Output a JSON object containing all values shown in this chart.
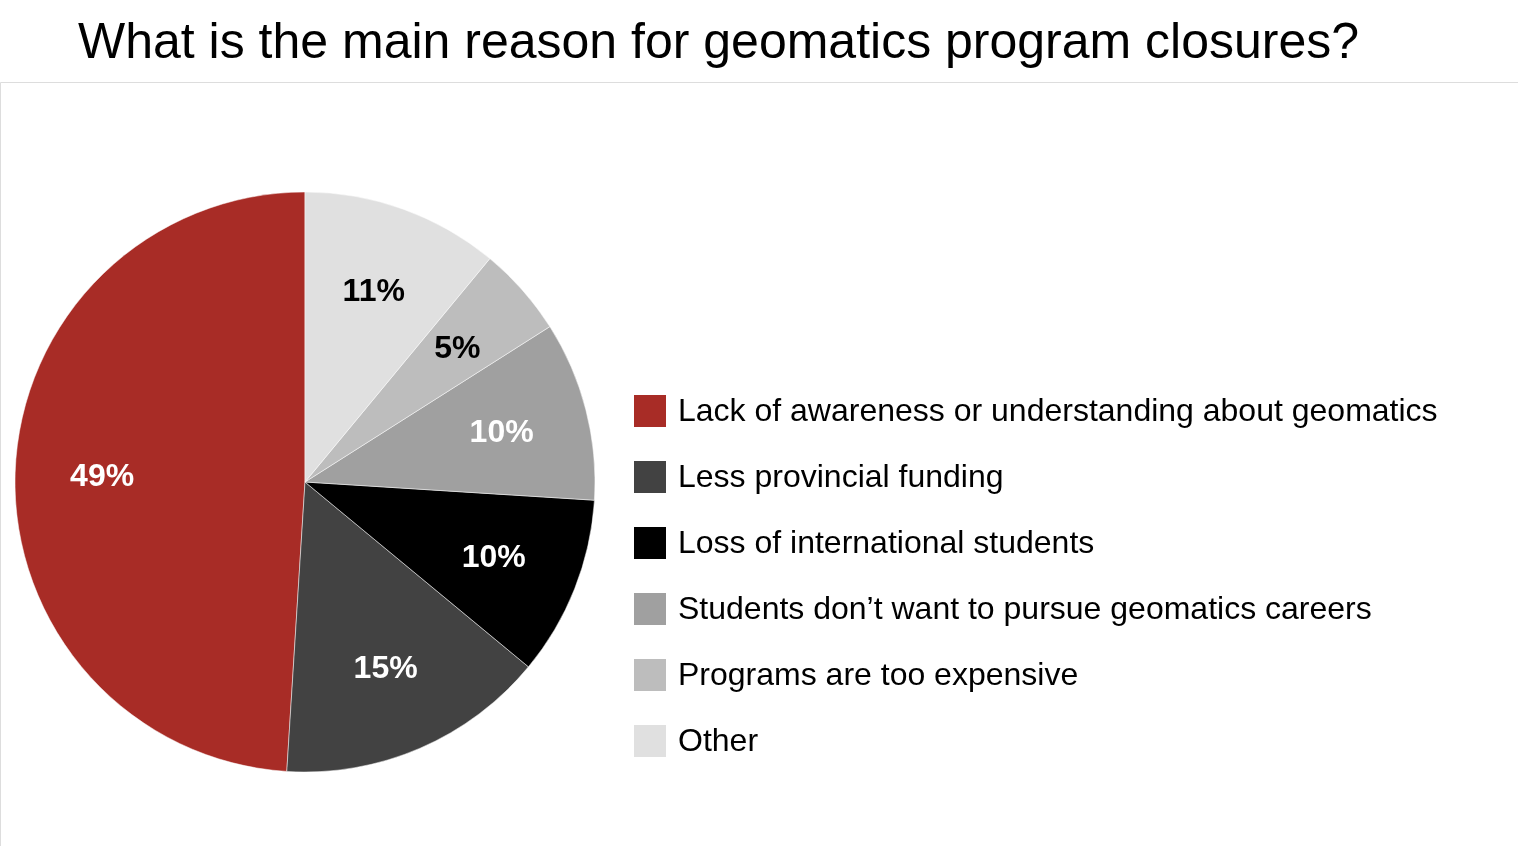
{
  "chart_data": {
    "type": "pie",
    "title": "What is the main reason for geomatics program closures?",
    "categories": [
      "Lack of awareness or understanding about geomatics",
      "Less provincial funding",
      "Loss of international students",
      "Students don’t want to pursue geomatics careers",
      "Programs are too expensive",
      "Other"
    ],
    "values": [
      49,
      15,
      10,
      10,
      5,
      11
    ],
    "colors": [
      "#a82c26",
      "#424242",
      "#000000",
      "#a0a0a0",
      "#bdbdbd",
      "#e0e0e0"
    ],
    "value_labels": [
      "49%",
      "15%",
      "10%",
      "10%",
      "5%",
      "11%"
    ],
    "legend": "right"
  }
}
